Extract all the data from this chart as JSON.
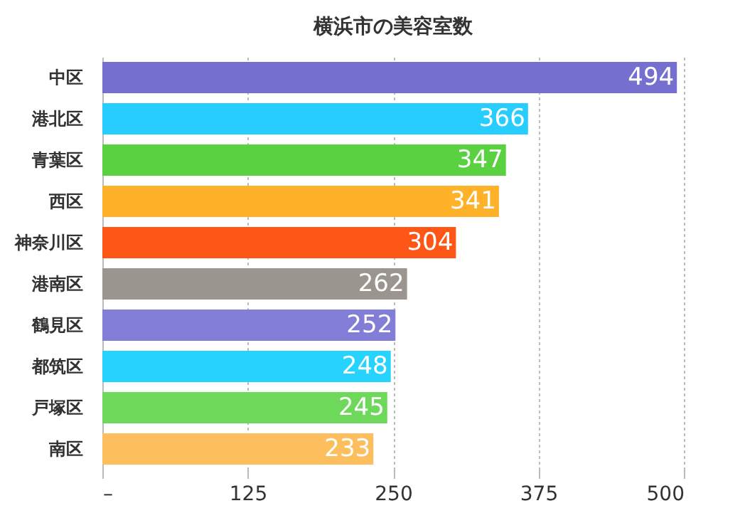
{
  "chart_data": {
    "type": "bar",
    "orientation": "horizontal",
    "title": "横浜市の美容室数",
    "categories": [
      "中区",
      "港北区",
      "青葉区",
      "西区",
      "神奈川区",
      "港南区",
      "鶴見区",
      "都筑区",
      "戸塚区",
      "南区"
    ],
    "values": [
      494,
      366,
      347,
      341,
      304,
      262,
      252,
      248,
      245,
      233
    ],
    "colors": [
      "#7570d0",
      "#26cdfe",
      "#59d140",
      "#fdb22a",
      "#fe5617",
      "#9a968f",
      "#827ed8",
      "#26d3fe",
      "#6dd85a",
      "#fdbf5e"
    ],
    "xlim": [
      0,
      500
    ],
    "xticks": [
      {
        "value": 0,
        "label": "–"
      },
      125,
      250,
      375,
      500
    ],
    "grid": "x",
    "data_labels": true
  }
}
